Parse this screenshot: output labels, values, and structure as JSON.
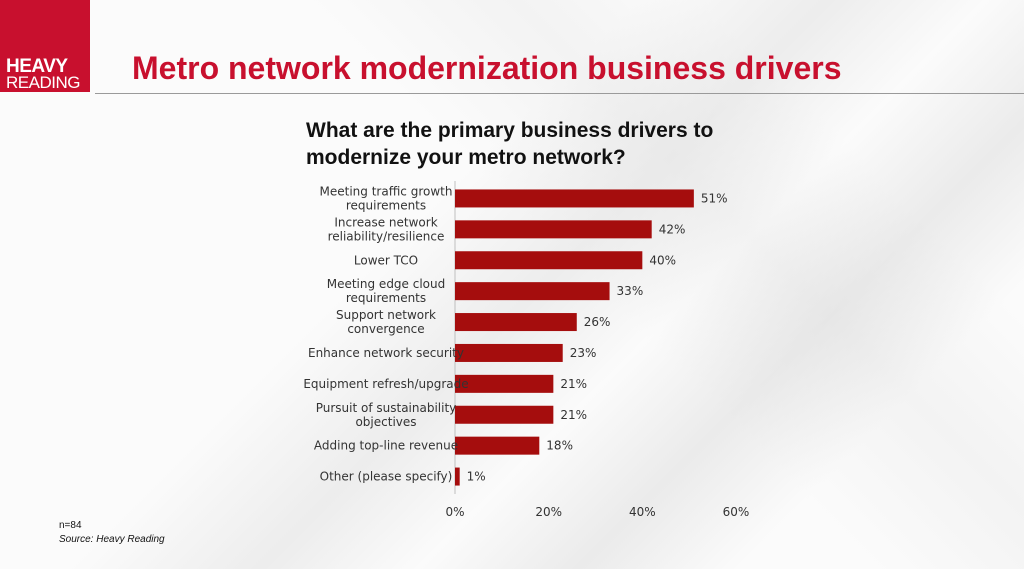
{
  "header": {
    "logo_line1": "HEAVY",
    "logo_line2": "READING",
    "page_title": "Metro network modernization business drivers"
  },
  "chart_data": {
    "type": "bar",
    "orientation": "horizontal",
    "title": "What are the primary business drivers to modernize your metro network?",
    "categories": [
      [
        "Meeting traffic growth",
        "requirements"
      ],
      [
        "Increase network",
        "reliability/resilience"
      ],
      [
        "Lower TCO"
      ],
      [
        "Meeting edge cloud",
        "requirements"
      ],
      [
        "Support network",
        "convergence"
      ],
      [
        "Enhance network security"
      ],
      [
        "Equipment refresh/upgrade"
      ],
      [
        "Pursuit of sustainability",
        "objectives"
      ],
      [
        "Adding top-line revenue"
      ],
      [
        "Other (please specify)"
      ]
    ],
    "values": [
      51,
      42,
      40,
      33,
      26,
      23,
      21,
      21,
      18,
      1
    ],
    "value_labels": [
      "51%",
      "42%",
      "40%",
      "33%",
      "26%",
      "23%",
      "21%",
      "21%",
      "18%",
      "1%"
    ],
    "xlim": [
      0,
      60
    ],
    "xticks": [
      0,
      20,
      40,
      60
    ],
    "xtick_labels": [
      "0%",
      "20%",
      "40%",
      "60%"
    ],
    "bar_color": "#a50d0d",
    "grid": false,
    "legend": "none"
  },
  "footer": {
    "sample_size": "n=84",
    "source": "Source: Heavy Reading"
  },
  "colors": {
    "brand": "#c8102e",
    "bar": "#a50d0d"
  }
}
